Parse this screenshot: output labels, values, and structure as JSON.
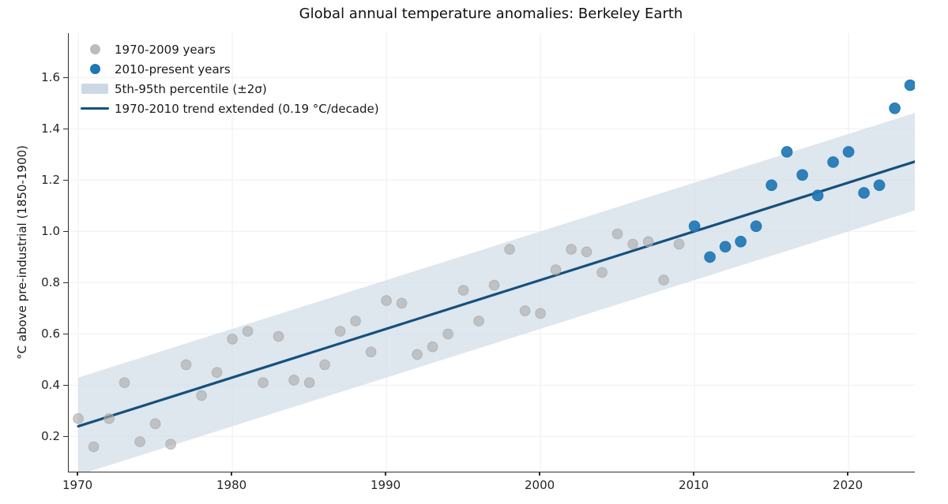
{
  "title": "Global annual temperature anomalies: Berkeley Earth",
  "ylabel": "°C above pre-industrial (1850-1900)",
  "colors": {
    "gray_dot": "#ababab",
    "blue_dot": "#1f77b4",
    "band": "#ccd9e5",
    "trend": "#15507d",
    "grid": "#f2f2f5",
    "spine": "#2e2e2e",
    "text": "#1a1a1a"
  },
  "legend": {
    "items": [
      {
        "label": "1970-2009 years",
        "marker": "dot",
        "color": "#bcbcbc"
      },
      {
        "label": "2010-present years",
        "marker": "dot",
        "color": "#1f77b4"
      },
      {
        "label": "5th-95th percentile (±2σ)",
        "marker": "patch",
        "color": "#ccd9e5"
      },
      {
        "label": "1970-2010 trend extended (0.19 °C/decade)",
        "marker": "line",
        "color": "#15507d"
      }
    ]
  },
  "chart_data": {
    "type": "scatter",
    "title": "Global annual temperature anomalies: Berkeley Earth",
    "xlabel": "",
    "ylabel": "°C above pre-industrial (1850-1900)",
    "xlim": [
      1969.38,
      2024.3
    ],
    "ylim": [
      0.063,
      1.773
    ],
    "x_ticks": [
      1970,
      1980,
      1990,
      2000,
      2010,
      2020
    ],
    "y_ticks": [
      0.2,
      0.4,
      0.6,
      0.8,
      1.0,
      1.2,
      1.4,
      1.6
    ],
    "grid": true,
    "legend_position": "upper left",
    "series": [
      {
        "name": "1970-2009 years",
        "color": "#ababab",
        "opacity": 0.62,
        "radius": 6.3,
        "x": [
          1970,
          1971,
          1972,
          1973,
          1974,
          1975,
          1976,
          1977,
          1978,
          1979,
          1980,
          1981,
          1982,
          1983,
          1984,
          1985,
          1986,
          1987,
          1988,
          1989,
          1990,
          1991,
          1992,
          1993,
          1994,
          1995,
          1996,
          1997,
          1998,
          1999,
          2000,
          2001,
          2002,
          2003,
          2004,
          2005,
          2006,
          2007,
          2008,
          2009
        ],
        "y": [
          0.27,
          0.16,
          0.27,
          0.41,
          0.18,
          0.25,
          0.17,
          0.48,
          0.36,
          0.45,
          0.58,
          0.61,
          0.41,
          0.59,
          0.42,
          0.41,
          0.48,
          0.61,
          0.65,
          0.53,
          0.73,
          0.72,
          0.52,
          0.55,
          0.6,
          0.77,
          0.65,
          0.79,
          0.93,
          0.69,
          0.68,
          0.85,
          0.93,
          0.92,
          0.84,
          0.99,
          0.95,
          0.96,
          0.81,
          0.95
        ]
      },
      {
        "name": "2010-present years",
        "color": "#1f77b4",
        "opacity": 0.92,
        "radius": 6.8,
        "x": [
          2010,
          2011,
          2012,
          2013,
          2014,
          2015,
          2016,
          2017,
          2018,
          2019,
          2020,
          2021,
          2022,
          2023,
          2024
        ],
        "y": [
          1.02,
          0.9,
          0.94,
          0.96,
          1.02,
          1.18,
          1.31,
          1.22,
          1.14,
          1.27,
          1.31,
          1.15,
          1.18,
          1.48,
          1.57
        ]
      }
    ],
    "band": {
      "name": "5th-95th percentile (±2σ)",
      "x_start": 1970,
      "x_end": 2024.3,
      "center_at_start": 0.24,
      "slope_per_year": 0.019,
      "half_width": 0.19,
      "color": "#ccd9e5",
      "opacity": 0.65
    },
    "trend": {
      "name": "1970-2010 trend extended (0.19 °C/decade)",
      "rate_label": "0.19 °C/decade",
      "x_start": 1970,
      "x_end": 2024.3,
      "y_start": 0.24,
      "y_end": 1.272,
      "color": "#15507d",
      "width": 3.2
    }
  }
}
